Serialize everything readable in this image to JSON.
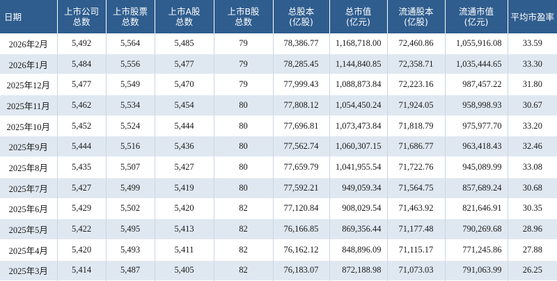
{
  "table": {
    "headers": [
      "日期",
      "上市公司\n总数",
      "上市股票\n总数",
      "上市A股\n总数",
      "上市B股\n总数",
      "总股本\n(亿股)",
      "总市值\n(亿元)",
      "流通股本\n(亿股)",
      "流通市值\n(亿元)",
      "平均市盈率"
    ],
    "rows": [
      [
        "2026年2月",
        "5,492",
        "5,564",
        "5,485",
        "79",
        "78,386.77",
        "1,168,718.00",
        "72,460.86",
        "1,055,916.08",
        "33.59"
      ],
      [
        "2026年1月",
        "5,484",
        "5,556",
        "5,477",
        "79",
        "78,285.45",
        "1,144,840.85",
        "72,358.71",
        "1,035,444.65",
        "33.30"
      ],
      [
        "2025年12月",
        "5,477",
        "5,549",
        "5,470",
        "79",
        "77,999.43",
        "1,088,873.84",
        "72,223.16",
        "987,457.22",
        "31.80"
      ],
      [
        "2025年11月",
        "5,462",
        "5,534",
        "5,454",
        "80",
        "77,808.12",
        "1,054,450.24",
        "71,924.05",
        "958,998.93",
        "30.67"
      ],
      [
        "2025年10月",
        "5,452",
        "5,524",
        "5,444",
        "80",
        "77,696.81",
        "1,073,473.84",
        "71,818.79",
        "975,977.70",
        "33.20"
      ],
      [
        "2025年9月",
        "5,444",
        "5,516",
        "5,436",
        "80",
        "77,562.74",
        "1,060,307.15",
        "71,686.77",
        "963,418.43",
        "32.46"
      ],
      [
        "2025年8月",
        "5,435",
        "5,507",
        "5,427",
        "80",
        "77,659.79",
        "1,041,955.54",
        "71,722.76",
        "945,089.99",
        "33.08"
      ],
      [
        "2025年7月",
        "5,427",
        "5,499",
        "5,419",
        "80",
        "77,592.21",
        "949,059.34",
        "71,564.75",
        "857,689.24",
        "30.68"
      ],
      [
        "2025年6月",
        "5,429",
        "5,502",
        "5,420",
        "82",
        "77,120.84",
        "908,029.54",
        "71,463.92",
        "821,646.91",
        "30.35"
      ],
      [
        "2025年5月",
        "5,422",
        "5,495",
        "5,413",
        "82",
        "76,166.85",
        "869,356.44",
        "71,177.48",
        "790,269.68",
        "28.96"
      ],
      [
        "2025年4月",
        "5,420",
        "5,493",
        "5,411",
        "82",
        "76,162.12",
        "848,896.09",
        "71,115.17",
        "771,245.86",
        "27.88"
      ],
      [
        "2025年3月",
        "5,414",
        "5,487",
        "5,405",
        "82",
        "76,183.07",
        "872,188.98",
        "71,073.03",
        "791,063.99",
        "26.25"
      ]
    ]
  }
}
